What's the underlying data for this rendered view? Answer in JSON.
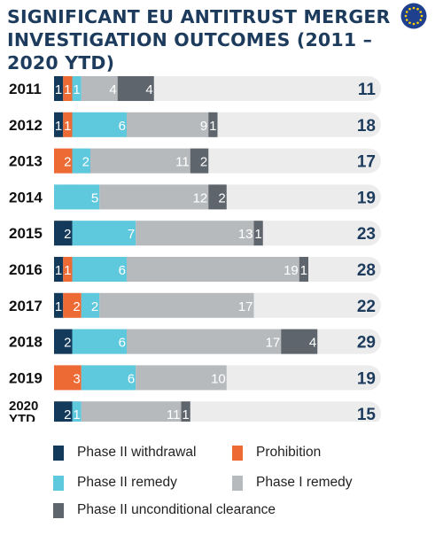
{
  "title_line1": "SIGNIFICANT EU ANTITRUST MERGER",
  "title_line2": "INVESTIGATION OUTCOMES (2011 – 2020 YTD)",
  "logo_icon": "eu-flag-icon",
  "colors": {
    "Phase II withdrawal": "#13395b",
    "Prohibition": "#ee6a34",
    "Phase II remedy": "#5ec8dd",
    "Phase I remedy": "#b7babd",
    "Phase II unconditional clearance": "#5e656c",
    "track": "#ececec",
    "total_text": "#1d3b5c"
  },
  "chart_data": {
    "type": "bar",
    "orientation": "horizontal",
    "stacked": true,
    "categories": [
      "2011",
      "2012",
      "2013",
      "2014",
      "2015",
      "2016",
      "2017",
      "2018",
      "2019",
      "2020\nYTD"
    ],
    "series": [
      {
        "name": "Phase II withdrawal",
        "values": [
          1,
          1,
          0,
          0,
          2,
          1,
          1,
          2,
          0,
          2
        ]
      },
      {
        "name": "Prohibition",
        "values": [
          1,
          1,
          2,
          0,
          0,
          1,
          2,
          0,
          3,
          0
        ]
      },
      {
        "name": "Phase II remedy",
        "values": [
          1,
          6,
          2,
          5,
          7,
          6,
          2,
          6,
          6,
          1
        ]
      },
      {
        "name": "Phase I remedy",
        "values": [
          4,
          9,
          11,
          12,
          13,
          19,
          17,
          17,
          10,
          11
        ]
      },
      {
        "name": "Phase II unconditional clearance",
        "values": [
          4,
          1,
          2,
          2,
          1,
          1,
          0,
          4,
          0,
          1
        ]
      }
    ],
    "totals": [
      11,
      18,
      17,
      19,
      23,
      28,
      22,
      29,
      19,
      15
    ],
    "xlim": [
      0,
      32
    ],
    "grid": false,
    "legend_position": "bottom"
  },
  "legend": {
    "items": [
      {
        "label": "Phase II withdrawal",
        "color": "#13395b"
      },
      {
        "label": "Prohibition",
        "color": "#ee6a34"
      },
      {
        "label": "Phase II remedy",
        "color": "#5ec8dd"
      },
      {
        "label": "Phase I remedy",
        "color": "#b7babd"
      },
      {
        "label": "Phase II unconditional clearance",
        "color": "#5e656c"
      }
    ]
  }
}
